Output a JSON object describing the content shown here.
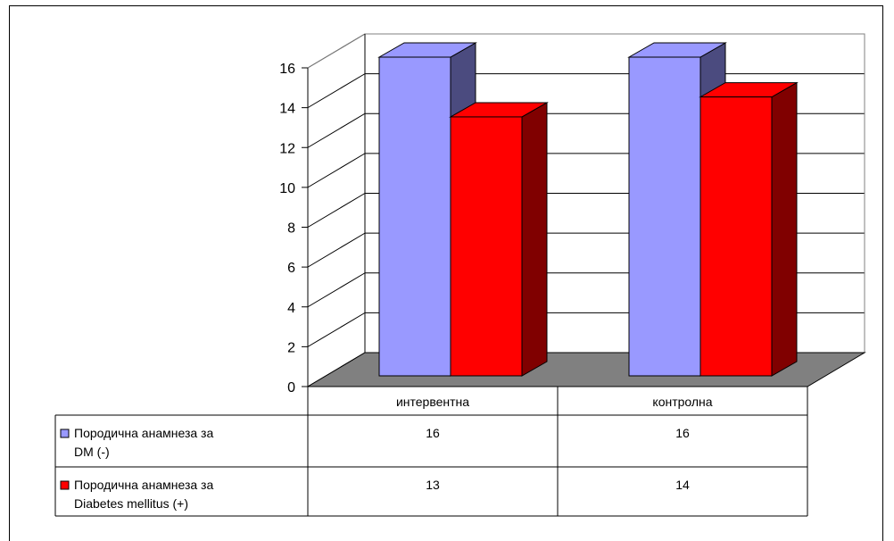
{
  "chart_data": {
    "type": "bar",
    "title": "",
    "xlabel": "",
    "ylabel": "",
    "categories": [
      "интервентна",
      "контролна"
    ],
    "series": [
      {
        "name": "Породична анамнеза за DM (-)",
        "name_lines": [
          "Породична анамнеза за",
          "DM (-)"
        ],
        "values": [
          16,
          16
        ],
        "color": "#9999FF",
        "side_color": "#4B4B7F"
      },
      {
        "name": "Породична анамнеза за Diabetes mellitus (+)",
        "name_lines": [
          "Породична анамнеза за",
          "Diabetes mellitus (+)"
        ],
        "values": [
          13,
          14
        ],
        "color": "#FF0000",
        "side_color": "#800000"
      }
    ],
    "ylim": [
      0,
      16
    ],
    "yticks": [
      "0",
      "2",
      "4",
      "6",
      "8",
      "10",
      "12",
      "14",
      "16"
    ],
    "grid": true,
    "legend": "data-table",
    "floor_color": "#808080"
  }
}
